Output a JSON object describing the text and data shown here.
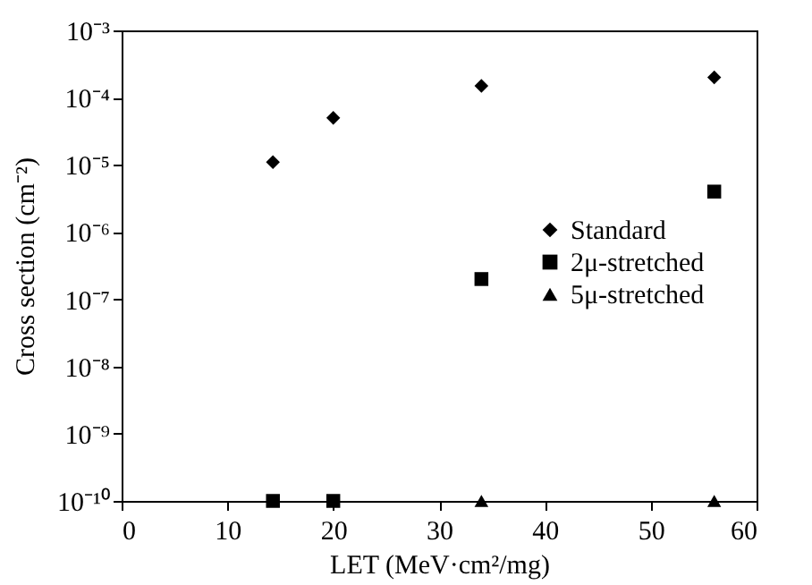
{
  "chart_data": {
    "type": "scatter",
    "xlabel": "LET (MeV·cm²/mg)",
    "ylabel": "Cross section (cm⁻²)",
    "log": "y",
    "xlim": [
      0,
      60
    ],
    "xticks": [
      0,
      10,
      20,
      30,
      40,
      50,
      60
    ],
    "ylim": [
      1e-10,
      0.001
    ],
    "yticks": [
      {
        "value": 1e-10,
        "label": "10⁻¹⁰"
      },
      {
        "value": 1e-09,
        "label": "10⁻⁹"
      },
      {
        "value": 1e-08,
        "label": "10⁻⁸"
      },
      {
        "value": 1e-07,
        "label": "10⁻⁷"
      },
      {
        "value": 1e-06,
        "label": "10⁻⁶"
      },
      {
        "value": 1e-05,
        "label": "10⁻⁵"
      },
      {
        "value": 0.0001,
        "label": "10⁻⁴"
      },
      {
        "value": 0.001,
        "label": "10⁻³"
      }
    ],
    "legend": "right",
    "grid": false,
    "series": [
      {
        "name": "Standard",
        "color": "#000000",
        "marker": "diamond",
        "x": [
          14.3,
          20,
          34,
          56
        ],
        "values": [
          1.1e-05,
          5e-05,
          0.00015,
          0.0002
        ]
      },
      {
        "name": "2μ-stretched",
        "color": "#000000",
        "marker": "square",
        "x": [
          14.3,
          20,
          34,
          56
        ],
        "values": [
          1e-10,
          1e-10,
          2e-07,
          4e-06
        ]
      },
      {
        "name": "5μ-stretched",
        "color": "#000000",
        "marker": "triangle",
        "x": [
          34,
          56
        ],
        "values": [
          1e-10,
          1e-10
        ]
      }
    ]
  }
}
